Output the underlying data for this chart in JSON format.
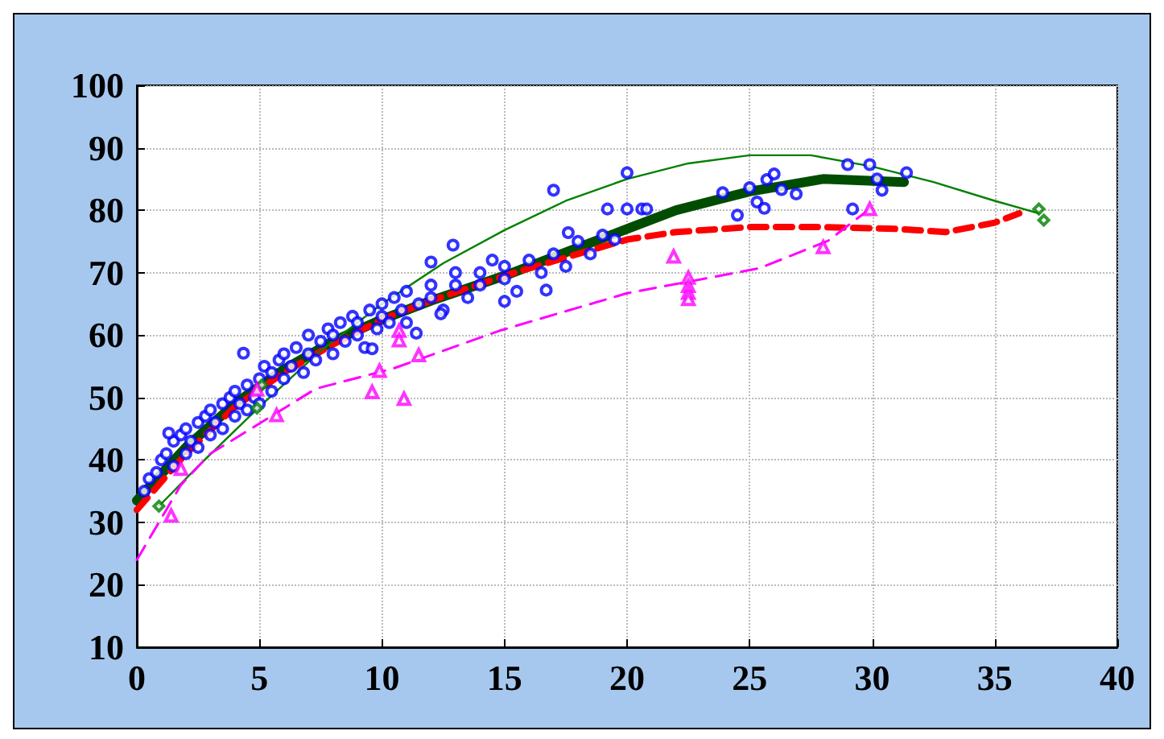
{
  "chart_data": {
    "type": "scatter",
    "xlim": [
      0,
      40
    ],
    "xticks": [
      0,
      5,
      10,
      15,
      20,
      25,
      30,
      35,
      40
    ],
    "ylim": [
      10,
      100
    ],
    "yticks": [
      10,
      20,
      30,
      40,
      50,
      60,
      70,
      80,
      90,
      100
    ],
    "grid": true,
    "series": [
      {
        "color": "#0000ff",
        "marker": "circle",
        "x": [
          0.3,
          0.5,
          0.8,
          1,
          1.2,
          1.5,
          1.5,
          1.8,
          2,
          2,
          2.2,
          2.5,
          2.5,
          2.8,
          3,
          3,
          3.2,
          3.5,
          3.5,
          3.8,
          4,
          4,
          4.2,
          4.5,
          4.5,
          4.8,
          5,
          5,
          5.2,
          5.5,
          5.5,
          5.8,
          6,
          6,
          6.3,
          6.5,
          6.8,
          7,
          7,
          7.3,
          7.5,
          7.8,
          8,
          8,
          8.3,
          8.5,
          8.8,
          9,
          9,
          9.3,
          9.5,
          9.8,
          10,
          10,
          10.3,
          10.5,
          10.8,
          11,
          11,
          11.5,
          12,
          12,
          12.5,
          13,
          13,
          13.5,
          14,
          14,
          14.5,
          15,
          15,
          15.5,
          16,
          16.5,
          17,
          17.5,
          18,
          18.5,
          19,
          1.3,
          4.35,
          9.6,
          11.4,
          12.4,
          15,
          16.7,
          12,
          12.9,
          17.6,
          17,
          19.2,
          19.5,
          20,
          20,
          20.6,
          20.8,
          23.9,
          24.5,
          25,
          25.3,
          25.6,
          25.7,
          26,
          26.3,
          26.9,
          29,
          29.9,
          30.2,
          30.4,
          29.2,
          31.4
        ],
        "values": [
          35,
          37,
          38,
          40,
          41,
          43,
          39,
          44,
          45,
          41,
          43,
          46,
          42,
          47,
          44,
          48,
          46,
          49,
          45,
          50,
          47,
          51,
          49,
          52,
          48,
          50,
          53,
          49,
          55,
          51,
          54,
          56,
          53,
          57,
          55,
          58,
          54,
          57,
          60,
          56,
          59,
          61,
          57,
          60,
          62,
          59,
          63,
          60,
          62,
          58,
          64,
          61,
          63,
          65,
          62,
          66,
          64,
          62,
          67,
          65,
          66,
          68,
          64,
          68,
          70,
          66,
          70,
          68,
          72,
          69,
          71,
          67,
          72,
          70,
          73,
          71,
          75,
          73,
          76,
          44.3,
          57.1,
          57.8,
          60.3,
          63.4,
          65.4,
          67.2,
          71.7,
          74.4,
          76.4,
          83.2,
          80.2,
          75.3,
          86,
          80.2,
          80.2,
          80.2,
          82.8,
          79.2,
          83.6,
          81.3,
          80.3,
          84.9,
          85.8,
          83.3,
          82.6,
          87.3,
          87.3,
          85,
          83.2,
          80.2,
          86
        ]
      },
      {
        "type": "line",
        "color": "#004d00",
        "marker": "none",
        "line_style": "solid",
        "x": [
          0,
          2,
          4,
          6,
          8,
          10,
          12,
          15,
          18,
          20,
          22,
          25,
          28,
          31.3
        ],
        "values": [
          33.5,
          42,
          49,
          54.5,
          59,
          62.5,
          65.5,
          69.5,
          74,
          77,
          80,
          83,
          85,
          84.5
        ]
      },
      {
        "type": "line",
        "color": "#ff0000",
        "marker": "none",
        "line_style": "dashed",
        "x": [
          0,
          2,
          4,
          6,
          8,
          10,
          12,
          15,
          18,
          20,
          22,
          25,
          28,
          31,
          33,
          35,
          36
        ],
        "values": [
          32,
          41,
          48.5,
          54,
          58.5,
          62.5,
          65.5,
          69.5,
          73,
          75.3,
          76.5,
          77.3,
          77.3,
          77,
          76.5,
          78,
          79.5
        ]
      },
      {
        "type": "line",
        "color": "#008000",
        "marker": "none",
        "line_style": "solid",
        "x": [
          0.9,
          2.5,
          5,
          7.5,
          10,
          12.5,
          15,
          17.5,
          20,
          22.5,
          25,
          27.5,
          30,
          32.5,
          35,
          36.8
        ],
        "values": [
          32.6,
          39,
          48.5,
          57.5,
          65,
          71.5,
          76.8,
          81.5,
          85,
          87.5,
          88.8,
          88.8,
          87,
          84.5,
          81.5,
          79.5
        ]
      },
      {
        "color": "#008000",
        "marker": "diamond",
        "x": [
          0.9,
          4.9,
          5.1,
          36.8,
          37
        ],
        "values": [
          32.6,
          48.3,
          52,
          80.2,
          78.4
        ]
      },
      {
        "type": "line",
        "color": "#ff00ff",
        "marker": "none",
        "line_style": "dashed",
        "x": [
          0,
          1.8,
          3,
          7.3,
          10.5,
          14.8,
          20,
          25.4,
          28.2,
          29.9
        ],
        "values": [
          24,
          36,
          41,
          51.4,
          54.7,
          60.7,
          66.7,
          70.7,
          75.1,
          80.2
        ]
      },
      {
        "color": "#ff00ff",
        "marker": "triangle",
        "x": [
          1.4,
          1.8,
          4.9,
          5.7,
          9.6,
          9.9,
          10.7,
          10.7,
          11.5,
          10.9,
          21.9,
          22.5,
          22.5,
          22.5,
          22.5,
          28,
          29.9
        ],
        "values": [
          31.1,
          38.6,
          51.3,
          47.2,
          50.9,
          54.3,
          60.7,
          59.2,
          56.8,
          49.8,
          72.6,
          69.2,
          67.9,
          66.8,
          65.8,
          74.1,
          80.2
        ]
      }
    ]
  }
}
